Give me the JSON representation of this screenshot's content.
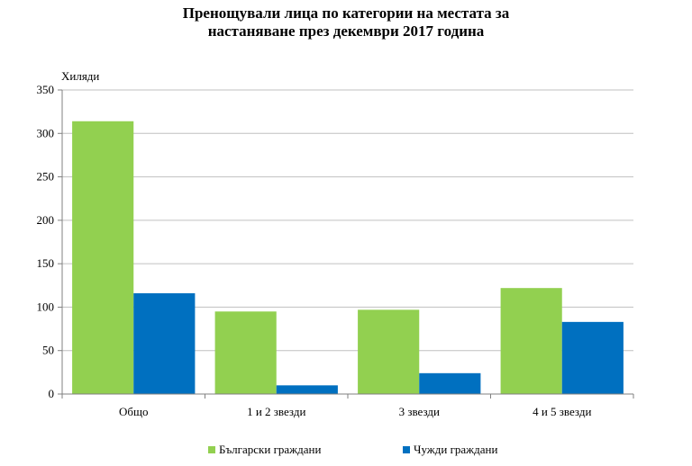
{
  "chart_data": {
    "type": "bar",
    "title_lines": [
      "Пренощували лица по категории на местата за",
      "настаняване през декември 2017 година"
    ],
    "ylabel": "Хиляди",
    "ylim": [
      0,
      350
    ],
    "yticks": [
      0,
      50,
      100,
      150,
      200,
      250,
      300,
      350
    ],
    "grid": true,
    "legend_position": "bottom",
    "categories": [
      "Общо",
      "1 и 2 звезди",
      "3 звезди",
      "4 и 5 звезди"
    ],
    "series": [
      {
        "name": "Български граждани",
        "color": "#92D050",
        "values": [
          314,
          95,
          97,
          122
        ]
      },
      {
        "name": "Чужди граждани",
        "color": "#0070C0",
        "values": [
          116,
          10,
          24,
          83
        ]
      }
    ]
  }
}
